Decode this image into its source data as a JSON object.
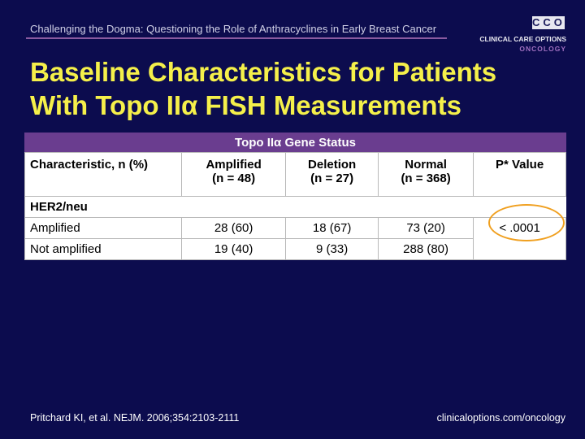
{
  "header": {
    "subtitle": "Challenging the Dogma: Questioning the Role of Anthracyclines in Early Breast Cancer",
    "logo": {
      "mark": "CCO",
      "name": "CLINICAL CARE OPTIONS",
      "sub": "ONCOLOGY"
    }
  },
  "title": {
    "lines": [
      "Baseline Characteristics for Patients",
      "With Topo IIα FISH Measurements"
    ]
  },
  "table": {
    "group_header": "Topo IIα Gene Status",
    "columns": [
      {
        "lines": [
          "Characteristic, n (%)"
        ]
      },
      {
        "lines": [
          "Amplified",
          "(n = 48)"
        ]
      },
      {
        "lines": [
          "Deletion",
          "(n = 27)"
        ]
      },
      {
        "lines": [
          "Normal",
          "(n = 368)"
        ]
      },
      {
        "lines": [
          "P* Value"
        ]
      }
    ],
    "section": "HER2/neu",
    "rows": [
      [
        "Amplified",
        "28 (60)",
        "18 (67)",
        "73 (20)",
        "< .0001"
      ],
      [
        "Not amplified",
        "19 (40)",
        "9 (33)",
        "288 (80)"
      ]
    ]
  },
  "footer": {
    "citation": "Pritchard KI, et al. NEJM. 2006;354:2103-2111",
    "url": "clinicaloptions.com/oncology"
  }
}
